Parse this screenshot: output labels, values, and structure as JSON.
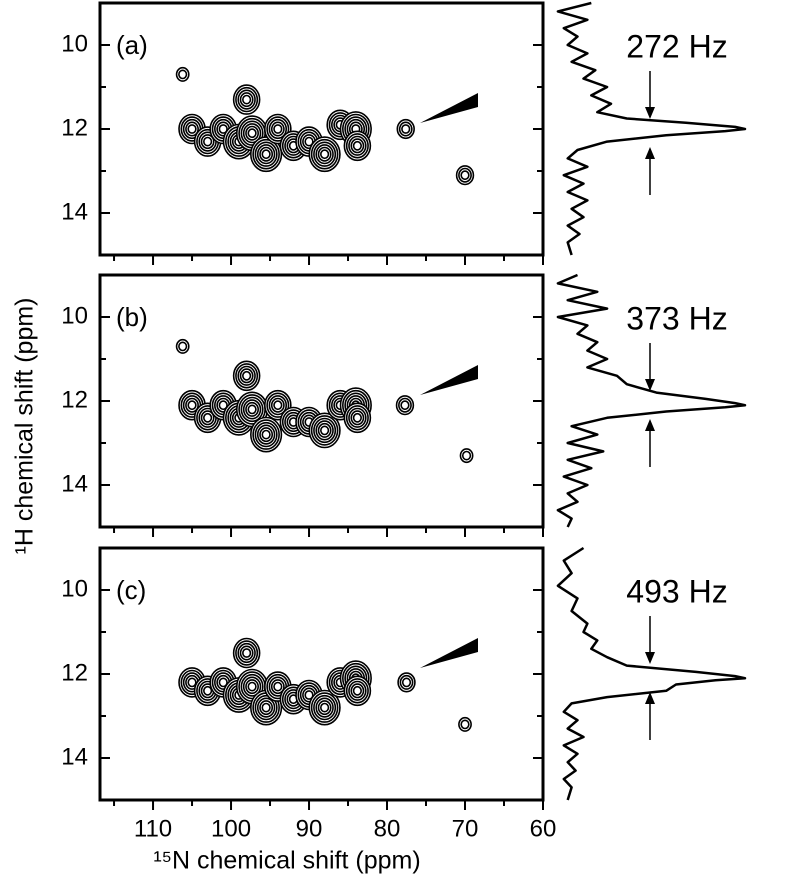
{
  "chart_data": [
    {
      "type": "contour",
      "label": "(a)",
      "annotation": "272 Hz",
      "xlim": [
        116.8,
        60
      ],
      "ylim": [
        9,
        15
      ],
      "xticks": [
        110,
        100,
        90,
        80,
        70,
        60
      ],
      "xminorticks": [
        115,
        105,
        95,
        85,
        75,
        65
      ],
      "yticks": [
        10,
        12,
        14
      ],
      "yminorticks": [
        9,
        11,
        13,
        15
      ],
      "show_xtick_labels": false,
      "peaks": {
        "x": [
          106.2,
          105,
          103,
          101,
          99,
          98,
          97.3,
          95.5,
          94,
          92,
          90,
          88,
          86,
          84,
          83.8,
          77.6,
          70
        ],
        "y": [
          10.7,
          12.0,
          12.3,
          12.0,
          12.3,
          11.3,
          12.1,
          12.6,
          12.0,
          12.4,
          12.3,
          12.6,
          11.9,
          12.0,
          12.4,
          12.0,
          13.1
        ],
        "levels": [
          2,
          5,
          5,
          5,
          6,
          5,
          6,
          6,
          5,
          5,
          5,
          6,
          5,
          6,
          5,
          3,
          3
        ]
      },
      "trace_lim": [
        0,
        1
      ],
      "trace": {
        "ppm": [
          9.0,
          9.2,
          9.4,
          9.6,
          9.8,
          10.0,
          10.2,
          10.4,
          10.6,
          10.8,
          11.0,
          11.2,
          11.4,
          11.6,
          11.75,
          11.85,
          11.95,
          12.0,
          12.05,
          12.15,
          12.3,
          12.5,
          12.7,
          12.9,
          13.1,
          13.3,
          13.5,
          13.7,
          13.9,
          14.1,
          14.3,
          14.5,
          14.7,
          15.0
        ],
        "intensity": [
          0.22,
          0.05,
          0.2,
          0.08,
          0.15,
          0.1,
          0.2,
          0.12,
          0.24,
          0.18,
          0.3,
          0.22,
          0.32,
          0.25,
          0.4,
          0.7,
          0.95,
          1.0,
          0.9,
          0.6,
          0.3,
          0.15,
          0.1,
          0.2,
          0.08,
          0.18,
          0.1,
          0.2,
          0.12,
          0.18,
          0.1,
          0.16,
          0.1,
          0.12
        ]
      }
    },
    {
      "type": "contour",
      "label": "(b)",
      "annotation": "373 Hz",
      "ylabel": "¹H chemical shift (ppm)",
      "xlim": [
        116.8,
        60
      ],
      "ylim": [
        9,
        15
      ],
      "xticks": [
        110,
        100,
        90,
        80,
        70,
        60
      ],
      "xminorticks": [
        115,
        105,
        95,
        85,
        75,
        65
      ],
      "yticks": [
        10,
        12,
        14
      ],
      "yminorticks": [
        9,
        11,
        13,
        15
      ],
      "show_xtick_labels": false,
      "peaks": {
        "x": [
          106.2,
          105,
          103,
          101,
          99,
          98,
          97.3,
          95.5,
          94,
          92,
          90,
          88,
          86,
          84,
          83.8,
          77.7,
          69.8
        ],
        "y": [
          10.7,
          12.1,
          12.4,
          12.1,
          12.4,
          11.4,
          12.2,
          12.8,
          12.1,
          12.5,
          12.5,
          12.7,
          12.1,
          12.1,
          12.4,
          12.1,
          13.3
        ],
        "levels": [
          2,
          5,
          5,
          5,
          6,
          5,
          6,
          6,
          5,
          5,
          5,
          6,
          5,
          6,
          5,
          3,
          2
        ]
      },
      "trace_lim": [
        0,
        1
      ],
      "trace": {
        "ppm": [
          9.0,
          9.2,
          9.4,
          9.6,
          9.8,
          10.0,
          10.2,
          10.4,
          10.6,
          10.8,
          11.0,
          11.2,
          11.4,
          11.6,
          11.8,
          11.95,
          12.05,
          12.1,
          12.15,
          12.25,
          12.4,
          12.6,
          12.8,
          13.0,
          13.2,
          13.4,
          13.6,
          13.8,
          14.0,
          14.2,
          14.4,
          14.6,
          14.8,
          15.0
        ],
        "intensity": [
          0.15,
          0.05,
          0.25,
          0.1,
          0.3,
          0.05,
          0.2,
          0.15,
          0.25,
          0.2,
          0.3,
          0.2,
          0.35,
          0.4,
          0.55,
          0.8,
          0.95,
          1.0,
          0.9,
          0.6,
          0.3,
          0.12,
          0.25,
          0.1,
          0.28,
          0.1,
          0.22,
          0.08,
          0.2,
          0.1,
          0.15,
          0.05,
          0.12,
          0.1
        ]
      }
    },
    {
      "type": "contour",
      "label": "(c)",
      "annotation": "493 Hz",
      "xlabel": "¹⁵N chemical shift (ppm)",
      "xlim": [
        116.8,
        60
      ],
      "ylim": [
        9,
        15
      ],
      "xticks": [
        110,
        100,
        90,
        80,
        70,
        60
      ],
      "xminorticks": [
        115,
        105,
        95,
        85,
        75,
        65
      ],
      "yticks": [
        10,
        12,
        14
      ],
      "yminorticks": [
        9,
        11,
        13,
        15
      ],
      "show_xtick_labels": true,
      "peaks": {
        "x": [
          105,
          103,
          101,
          99,
          98,
          97.3,
          95.5,
          94,
          92,
          90,
          88,
          86,
          84,
          83.8,
          77.5,
          70
        ],
        "y": [
          12.2,
          12.4,
          12.2,
          12.5,
          11.5,
          12.3,
          12.8,
          12.3,
          12.6,
          12.5,
          12.8,
          12.2,
          12.1,
          12.4,
          12.2,
          13.2
        ],
        "levels": [
          5,
          5,
          5,
          6,
          5,
          6,
          6,
          5,
          5,
          5,
          6,
          5,
          6,
          5,
          3,
          2
        ]
      },
      "trace_lim": [
        0,
        1
      ],
      "trace": {
        "ppm": [
          9.0,
          9.3,
          9.6,
          9.9,
          10.2,
          10.5,
          10.8,
          11.0,
          11.2,
          11.4,
          11.6,
          11.8,
          11.95,
          12.05,
          12.1,
          12.15,
          12.25,
          12.4,
          12.55,
          12.7,
          12.9,
          13.1,
          13.3,
          13.5,
          13.7,
          13.9,
          14.1,
          14.3,
          14.5,
          14.7,
          15.0
        ],
        "intensity": [
          0.18,
          0.08,
          0.12,
          0.05,
          0.15,
          0.12,
          0.2,
          0.18,
          0.25,
          0.22,
          0.3,
          0.4,
          0.75,
          0.95,
          1.0,
          0.85,
          0.65,
          0.6,
          0.3,
          0.12,
          0.08,
          0.15,
          0.1,
          0.18,
          0.08,
          0.15,
          0.1,
          0.14,
          0.08,
          0.12,
          0.1
        ]
      }
    }
  ]
}
